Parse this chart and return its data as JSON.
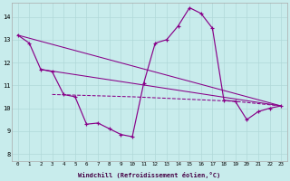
{
  "xlabel": "Windchill (Refroidissement éolien,°C)",
  "background_color": "#c8ecec",
  "grid_color": "#b0d8d8",
  "line_color": "#880088",
  "xlim": [
    -0.5,
    23.5
  ],
  "ylim": [
    7.7,
    14.6
  ],
  "yticks": [
    8,
    9,
    10,
    11,
    12,
    13,
    14
  ],
  "xticks": [
    0,
    1,
    2,
    3,
    4,
    5,
    6,
    7,
    8,
    9,
    10,
    11,
    12,
    13,
    14,
    15,
    16,
    17,
    18,
    19,
    20,
    21,
    22,
    23
  ],
  "main_line": {
    "x": [
      0,
      1,
      2,
      3,
      4,
      5,
      6,
      7,
      8,
      9,
      10,
      11,
      12,
      13,
      14,
      15,
      16,
      17,
      18,
      19,
      20,
      21,
      22,
      23
    ],
    "y": [
      13.2,
      12.85,
      11.7,
      11.6,
      10.6,
      10.5,
      9.3,
      9.35,
      9.1,
      8.85,
      8.75,
      11.1,
      12.85,
      13.0,
      13.6,
      14.4,
      14.15,
      13.5,
      10.35,
      10.3,
      9.5,
      9.85,
      10.0,
      10.1
    ]
  },
  "line2": {
    "comment": "straight line from x=0,y=13.2 to x=23,y=10.1",
    "x": [
      0,
      23
    ],
    "y": [
      13.2,
      10.1
    ]
  },
  "line3": {
    "x": [
      2,
      23
    ],
    "y": [
      11.7,
      10.1
    ]
  },
  "line4": {
    "comment": "dashed line connecting key points: x=3 y=10.6, x=10 y=10.5, x=19 y=10.3, x=23 y=10.1",
    "x": [
      3,
      10,
      19,
      23
    ],
    "y": [
      10.6,
      10.5,
      10.3,
      10.1
    ]
  }
}
